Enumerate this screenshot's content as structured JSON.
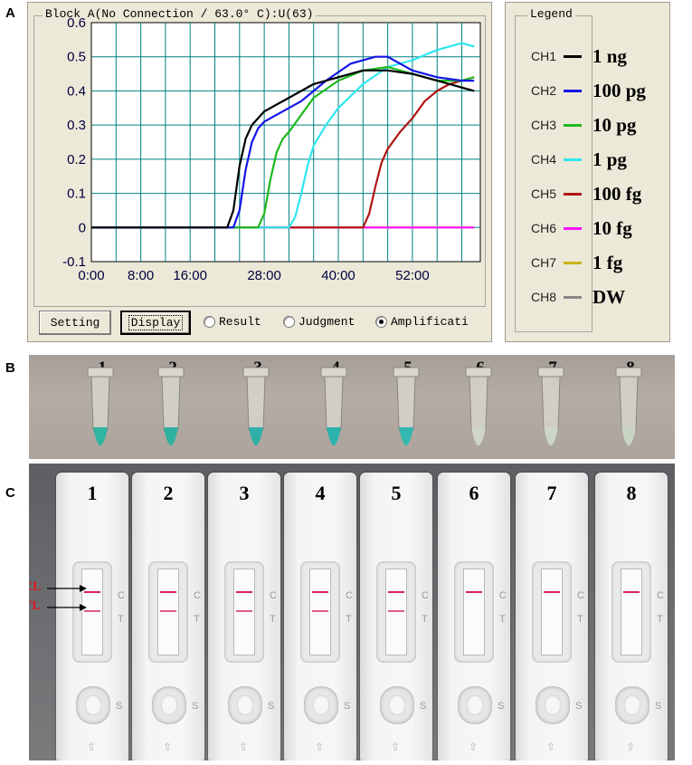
{
  "panel_labels": {
    "a": "A",
    "b": "B",
    "c": "C"
  },
  "window": {
    "title": "Block A(No Connection / 63.0° C):U(63)",
    "buttons": {
      "setting": "Setting",
      "display": "Display"
    },
    "radios": [
      {
        "label": "Result",
        "selected": false
      },
      {
        "label": "Judgment",
        "selected": false
      },
      {
        "label": "Amplificati",
        "selected": true
      }
    ]
  },
  "legend": {
    "title": "Legend",
    "items": [
      {
        "channel": "CH1",
        "amount": "1 ng",
        "color": "#000000"
      },
      {
        "channel": "CH2",
        "amount": "100 pg",
        "color": "#1414e6"
      },
      {
        "channel": "CH3",
        "amount": "10 pg",
        "color": "#1fb81f"
      },
      {
        "channel": "CH4",
        "amount": "1 pg",
        "color": "#2ee6ee"
      },
      {
        "channel": "CH5",
        "amount": "100 fg",
        "color": "#b01414"
      },
      {
        "channel": "CH6",
        "amount": "10 fg",
        "color": "#ff14ff"
      },
      {
        "channel": "CH7",
        "amount": "1 fg",
        "color": "#c8b414"
      },
      {
        "channel": "CH8",
        "amount": "DW",
        "color": "#888888"
      }
    ]
  },
  "chart_data": {
    "type": "line",
    "title": "",
    "xlabel": "",
    "ylabel": "",
    "xlim": [
      0,
      63
    ],
    "ylim": [
      -0.1,
      0.6
    ],
    "x_tick_labels": [
      "0:00",
      "8:00",
      "16:00",
      "28:00",
      "40:00",
      "52:00"
    ],
    "x_tick_values": [
      0,
      8,
      16,
      28,
      40,
      52
    ],
    "y_ticks": [
      -0.1,
      0,
      0.1,
      0.2,
      0.3,
      0.4,
      0.5,
      0.6
    ],
    "y_tick_labels": [
      "-0.1",
      "0",
      "0.1",
      "0.2",
      "0.3",
      "0.4",
      "0.5",
      "0.6"
    ],
    "grid": true,
    "series": [
      {
        "name": "CH1",
        "color": "#000000",
        "points": [
          [
            0,
            0
          ],
          [
            22,
            0
          ],
          [
            23,
            0.05
          ],
          [
            24,
            0.18
          ],
          [
            25,
            0.26
          ],
          [
            26,
            0.3
          ],
          [
            28,
            0.34
          ],
          [
            32,
            0.38
          ],
          [
            36,
            0.42
          ],
          [
            40,
            0.44
          ],
          [
            44,
            0.46
          ],
          [
            48,
            0.46
          ],
          [
            52,
            0.45
          ],
          [
            56,
            0.43
          ],
          [
            60,
            0.41
          ],
          [
            62,
            0.4
          ]
        ]
      },
      {
        "name": "CH2",
        "color": "#1414e6",
        "points": [
          [
            0,
            0
          ],
          [
            23,
            0
          ],
          [
            24,
            0.05
          ],
          [
            25,
            0.17
          ],
          [
            26,
            0.25
          ],
          [
            27,
            0.29
          ],
          [
            28,
            0.31
          ],
          [
            30,
            0.33
          ],
          [
            34,
            0.37
          ],
          [
            38,
            0.43
          ],
          [
            42,
            0.48
          ],
          [
            46,
            0.5
          ],
          [
            48,
            0.5
          ],
          [
            50,
            0.48
          ],
          [
            52,
            0.46
          ],
          [
            56,
            0.44
          ],
          [
            60,
            0.43
          ],
          [
            62,
            0.43
          ]
        ]
      },
      {
        "name": "CH3",
        "color": "#1fb81f",
        "points": [
          [
            0,
            0
          ],
          [
            27,
            0
          ],
          [
            28,
            0.04
          ],
          [
            29,
            0.14
          ],
          [
            30,
            0.22
          ],
          [
            31,
            0.26
          ],
          [
            32,
            0.28
          ],
          [
            34,
            0.33
          ],
          [
            36,
            0.38
          ],
          [
            40,
            0.43
          ],
          [
            44,
            0.46
          ],
          [
            48,
            0.47
          ],
          [
            52,
            0.45
          ],
          [
            56,
            0.43
          ],
          [
            60,
            0.43
          ],
          [
            62,
            0.44
          ]
        ]
      },
      {
        "name": "CH4",
        "color": "#2ee6ee",
        "points": [
          [
            0,
            0
          ],
          [
            32,
            0
          ],
          [
            33,
            0.03
          ],
          [
            34,
            0.1
          ],
          [
            35,
            0.18
          ],
          [
            36,
            0.24
          ],
          [
            38,
            0.3
          ],
          [
            40,
            0.35
          ],
          [
            44,
            0.42
          ],
          [
            48,
            0.47
          ],
          [
            52,
            0.49
          ],
          [
            56,
            0.52
          ],
          [
            60,
            0.54
          ],
          [
            62,
            0.53
          ]
        ]
      },
      {
        "name": "CH5",
        "color": "#b01414",
        "points": [
          [
            0,
            0
          ],
          [
            44,
            0
          ],
          [
            45,
            0.04
          ],
          [
            46,
            0.12
          ],
          [
            47,
            0.19
          ],
          [
            48,
            0.23
          ],
          [
            50,
            0.28
          ],
          [
            52,
            0.32
          ],
          [
            54,
            0.37
          ],
          [
            56,
            0.4
          ],
          [
            58,
            0.42
          ],
          [
            60,
            0.43
          ],
          [
            62,
            0.44
          ]
        ]
      },
      {
        "name": "CH6",
        "color": "#ff14ff",
        "points": [
          [
            0,
            0
          ],
          [
            62,
            0
          ]
        ]
      },
      {
        "name": "CH7",
        "color": "#c8b414",
        "points": [
          [
            0,
            0
          ],
          [
            62,
            0
          ]
        ]
      },
      {
        "name": "CH8",
        "color": "#888888",
        "points": [
          [
            0,
            0
          ],
          [
            62,
            0
          ]
        ]
      }
    ]
  },
  "tubes": {
    "labels": [
      "1",
      "2",
      "3",
      "4",
      "5",
      "6",
      "7",
      "8"
    ],
    "colors": [
      "#2fb5a0",
      "#2fb0a0",
      "#2eb0a6",
      "#2db3ad",
      "#32b8b0",
      "#cfd6c8",
      "#cdd6c6",
      "#c8d4c2"
    ]
  },
  "strips": {
    "labels": [
      "1",
      "2",
      "3",
      "4",
      "5",
      "6",
      "7",
      "8"
    ],
    "control_line_visible": [
      true,
      true,
      true,
      true,
      true,
      true,
      true,
      true
    ],
    "test_line_visible": [
      true,
      true,
      true,
      true,
      true,
      false,
      false,
      false
    ],
    "c_mark": "C",
    "t_mark": "T",
    "s_mark": "S",
    "cl_label": "CL",
    "tl_label": "TL"
  }
}
